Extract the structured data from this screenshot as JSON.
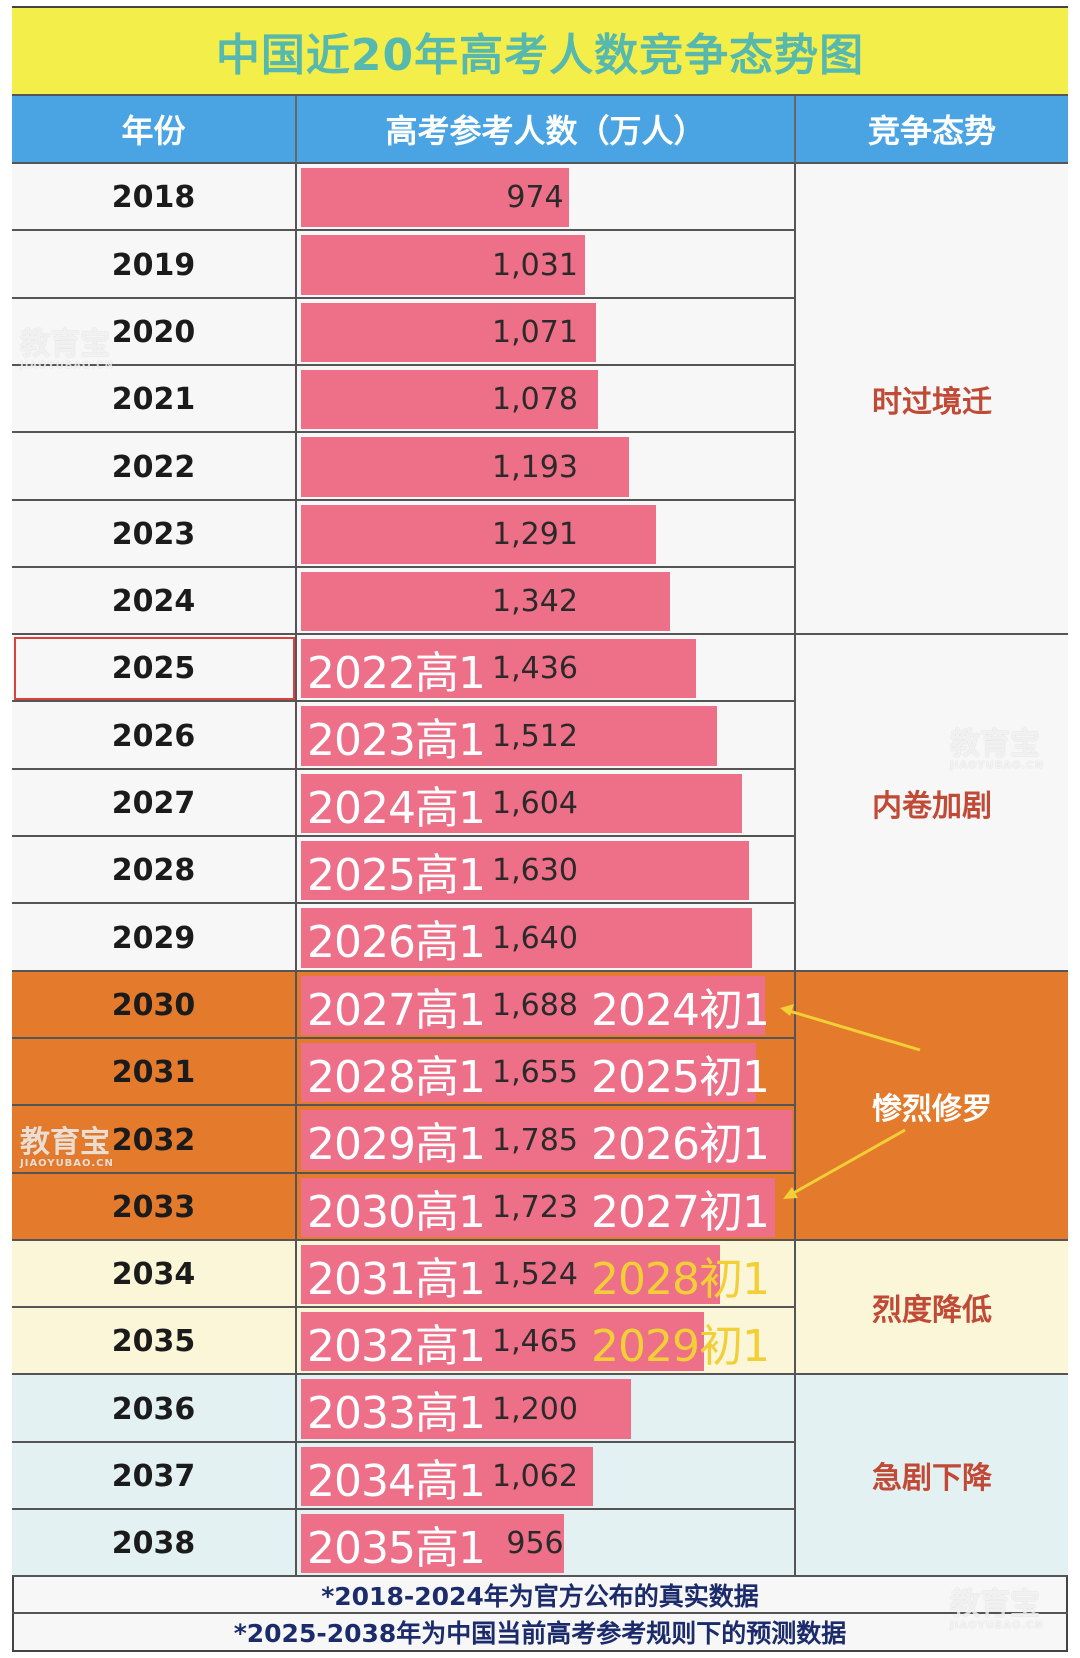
{
  "title": "中国近20年高考人数竞争态势图",
  "headers": {
    "year": "年份",
    "count": "高考参考人数（万人）",
    "trend": "竞争态势"
  },
  "rows": [
    {
      "year": "2018",
      "label": "974",
      "cohort": "",
      "chu": ""
    },
    {
      "year": "2019",
      "label": "1,031",
      "cohort": "",
      "chu": ""
    },
    {
      "year": "2020",
      "label": "1,071",
      "cohort": "",
      "chu": ""
    },
    {
      "year": "2021",
      "label": "1,078",
      "cohort": "",
      "chu": ""
    },
    {
      "year": "2022",
      "label": "1,193",
      "cohort": "",
      "chu": ""
    },
    {
      "year": "2023",
      "label": "1,291",
      "cohort": "",
      "chu": ""
    },
    {
      "year": "2024",
      "label": "1,342",
      "cohort": "",
      "chu": ""
    },
    {
      "year": "2025",
      "label": "1,436",
      "cohort": "2022高1",
      "chu": ""
    },
    {
      "year": "2026",
      "label": "1,512",
      "cohort": "2023高1",
      "chu": ""
    },
    {
      "year": "2027",
      "label": "1,604",
      "cohort": "2024高1",
      "chu": ""
    },
    {
      "year": "2028",
      "label": "1,630",
      "cohort": "2025高1",
      "chu": ""
    },
    {
      "year": "2029",
      "label": "1,640",
      "cohort": "2026高1",
      "chu": ""
    },
    {
      "year": "2030",
      "label": "1,688",
      "cohort": "2027高1",
      "chu": "2024初1"
    },
    {
      "year": "2031",
      "label": "1,655",
      "cohort": "2028高1",
      "chu": "2025初1"
    },
    {
      "year": "2032",
      "label": "1,785",
      "cohort": "2029高1",
      "chu": "2026初1"
    },
    {
      "year": "2033",
      "label": "1,723",
      "cohort": "2030高1",
      "chu": "2027初1"
    },
    {
      "year": "2034",
      "label": "1,524",
      "cohort": "2031高1",
      "chu": "2028初1"
    },
    {
      "year": "2035",
      "label": "1,465",
      "cohort": "2032高1",
      "chu": "2029初1"
    },
    {
      "year": "2036",
      "label": "1,200",
      "cohort": "2033高1",
      "chu": ""
    },
    {
      "year": "2037",
      "label": "1,062",
      "cohort": "2034高1",
      "chu": ""
    },
    {
      "year": "2038",
      "label": "956",
      "cohort": "2035高1",
      "chu": ""
    }
  ],
  "trends": [
    {
      "label": "时过境迁",
      "start": 0,
      "end": 6
    },
    {
      "label": "内卷加剧",
      "start": 7,
      "end": 11
    },
    {
      "label": "惨烈修罗",
      "start": 12,
      "end": 15
    },
    {
      "label": "烈度降低",
      "start": 16,
      "end": 17
    },
    {
      "label": "急剧下降",
      "start": 18,
      "end": 20
    }
  ],
  "notes": [
    "*2018-2024年为官方公布的真实数据",
    "*2025-2038年为中国当前高考参考规则下的预测数据"
  ],
  "watermark": {
    "text": "教育宝",
    "sub": "JIAOYUBAO.CN"
  },
  "colors": {
    "bar": "#ee6f88",
    "header": "#4aa4e3",
    "title_bg": "#f4ee4a",
    "title_text": "#57b9ae",
    "orange": "#e37a2c",
    "pale_yellow": "#fbf6d8",
    "pale_blue": "#e4f1f3",
    "light_row": "#f7f7f7",
    "trend_text": "#c14a36",
    "chu_yellow": "#f2cf37"
  },
  "chart_data": {
    "type": "bar",
    "title": "中国近20年高考人数竞争态势图",
    "ylabel": "高考参考人数（万人）",
    "categories": [
      "2018",
      "2019",
      "2020",
      "2021",
      "2022",
      "2023",
      "2024",
      "2025",
      "2026",
      "2027",
      "2028",
      "2029",
      "2030",
      "2031",
      "2032",
      "2033",
      "2034",
      "2035",
      "2036",
      "2037",
      "2038"
    ],
    "values": [
      974,
      1031,
      1071,
      1078,
      1193,
      1291,
      1342,
      1436,
      1512,
      1604,
      1630,
      1640,
      1688,
      1655,
      1785,
      1723,
      1524,
      1465,
      1200,
      1062,
      956
    ],
    "ylim": [
      0,
      1785
    ],
    "orientation": "horizontal"
  }
}
